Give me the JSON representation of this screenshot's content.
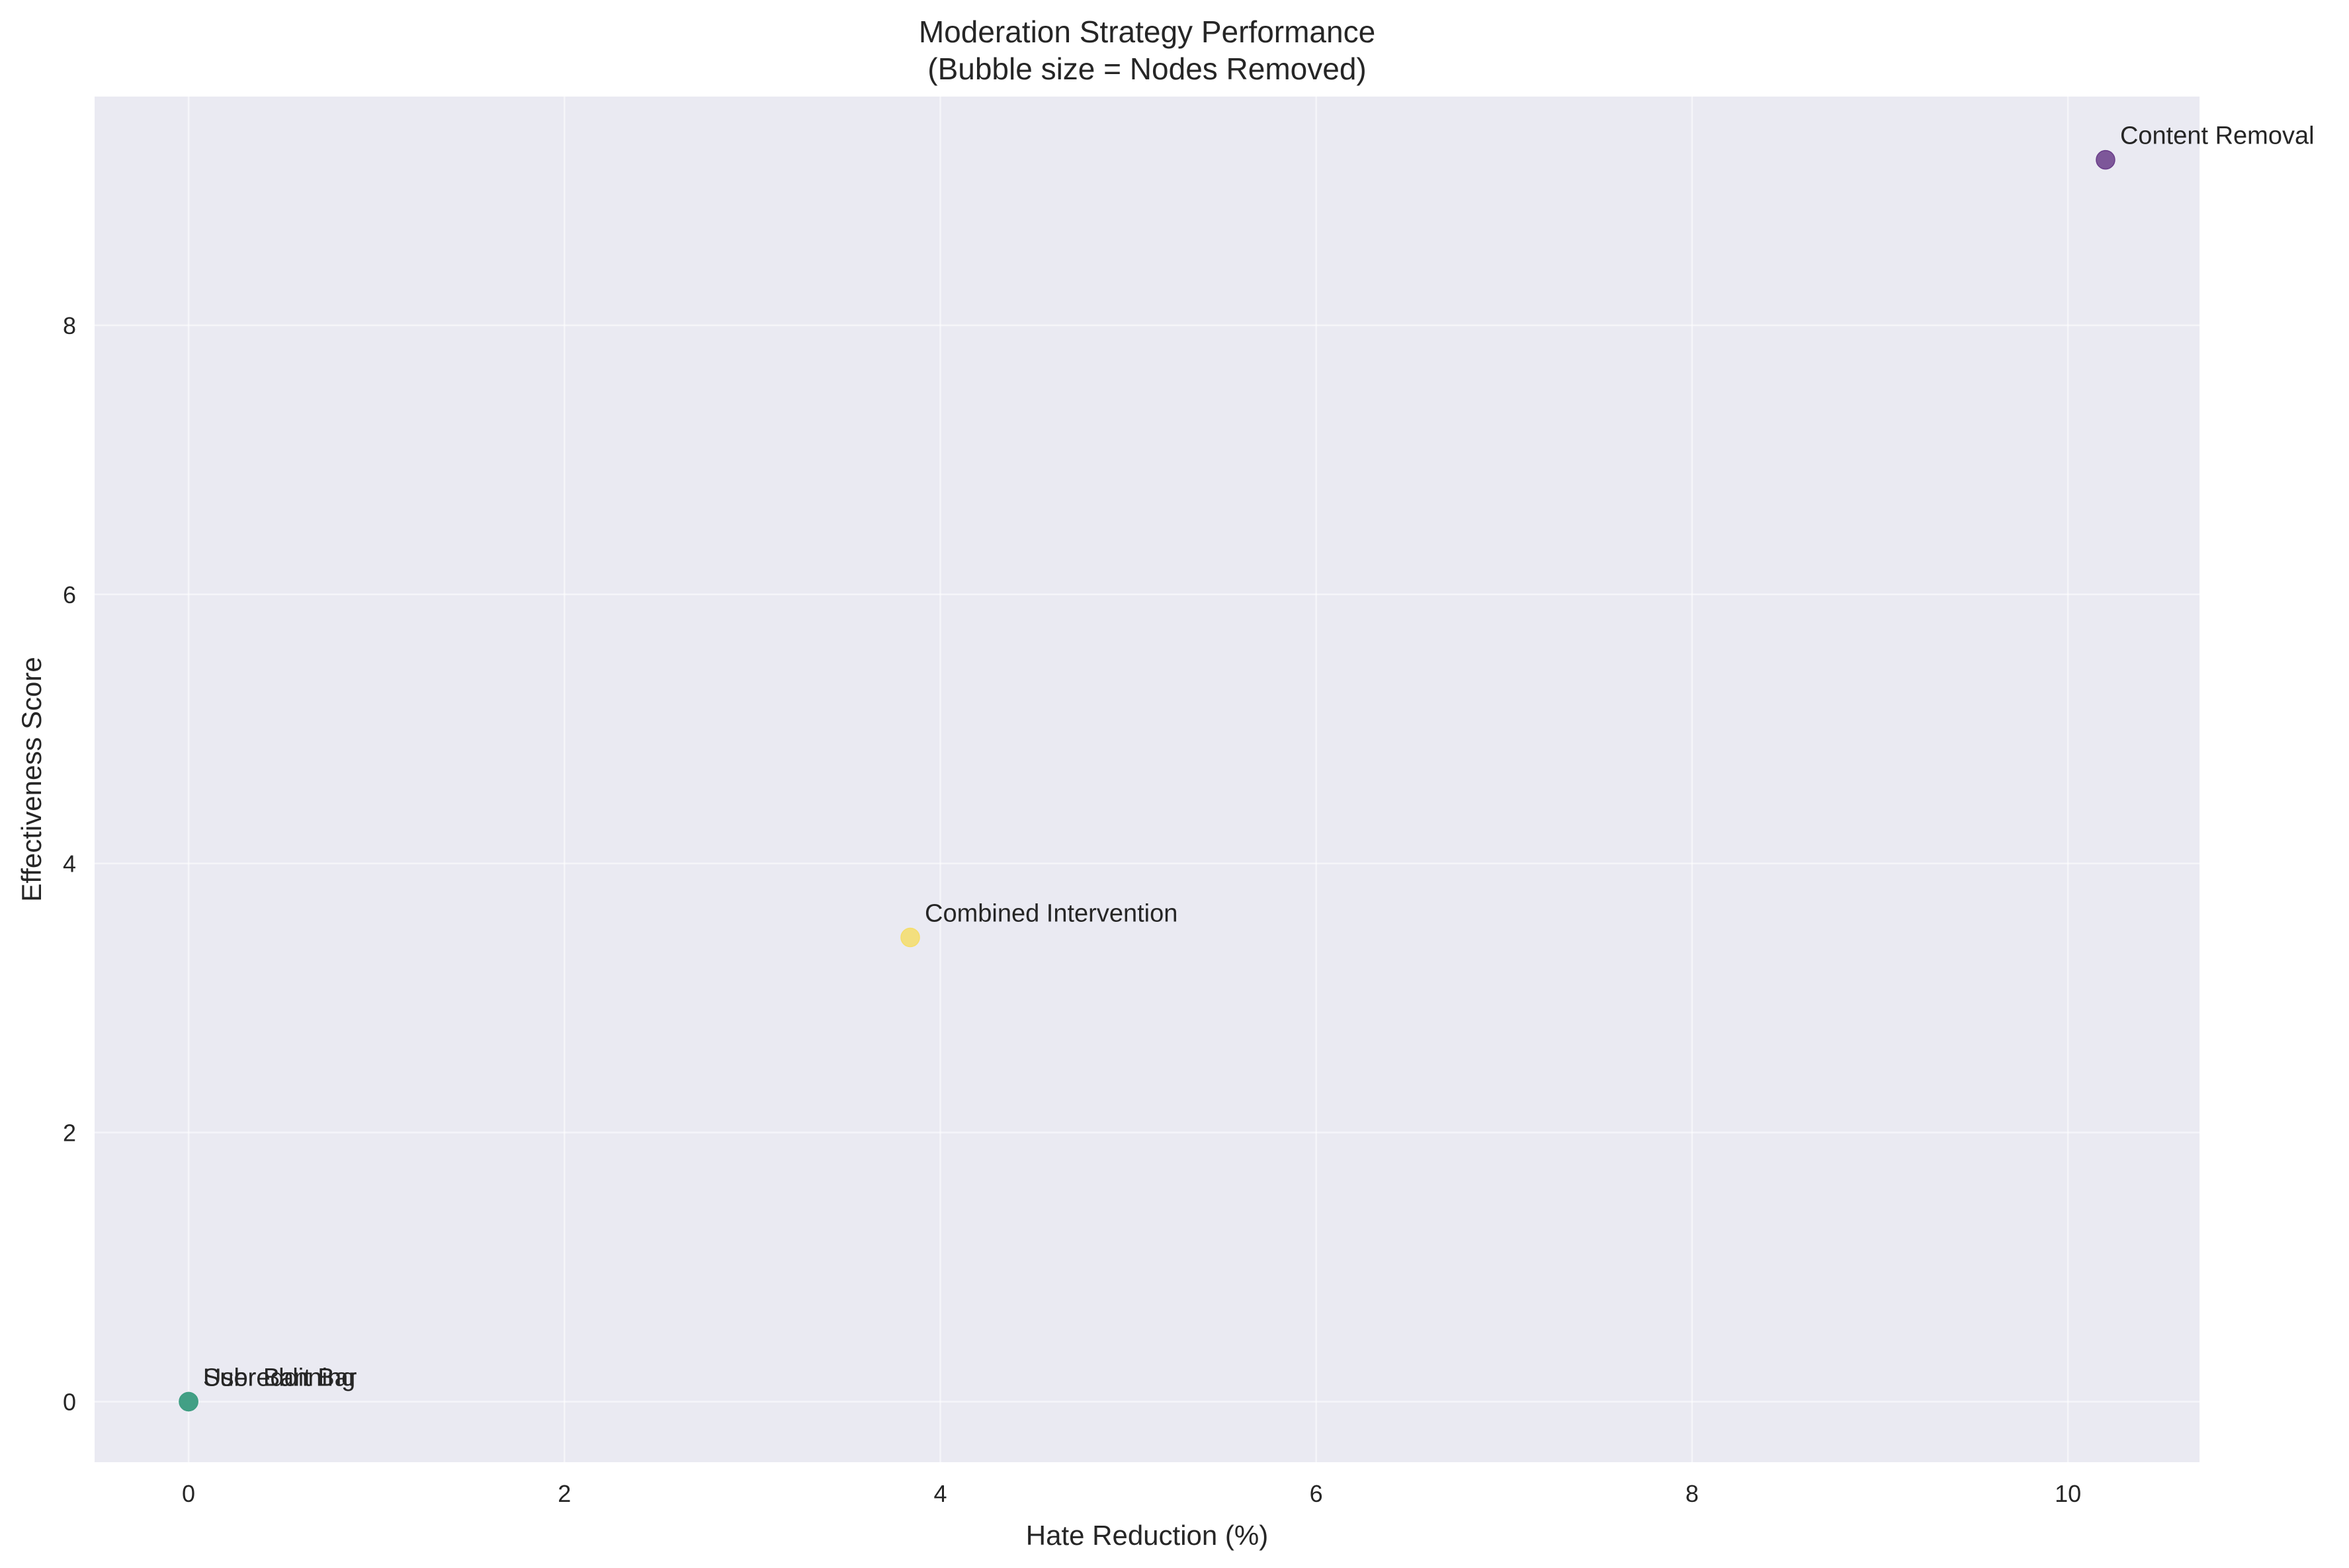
{
  "chart_data": {
    "type": "scatter",
    "title": "Moderation Strategy Performance\n(Bubble size = Nodes Removed)",
    "xlabel": "Hate Reduction (%)",
    "ylabel": "Effectiveness Score",
    "xlim": [
      -0.5,
      10.7
    ],
    "ylim": [
      -0.45,
      9.7
    ],
    "xticks": [
      0,
      2,
      4,
      6,
      8,
      10
    ],
    "yticks": [
      0,
      2,
      4,
      6,
      8
    ],
    "grid": true,
    "legend": "none",
    "colors": {
      "background": "#eaeaf2",
      "grid": "#ffffff"
    },
    "points": [
      {
        "label": "Content Removal",
        "x": 10.2,
        "y": 9.23,
        "color": "#6a3d8a"
      },
      {
        "label": "Combined Intervention",
        "x": 3.84,
        "y": 3.45,
        "color": "#f5dd6a"
      },
      {
        "label": "User Banning",
        "x": 0.0,
        "y": 0.0,
        "color": "#3e9e82"
      },
      {
        "label": "Subreddit Bar",
        "x": 0.0,
        "y": 0.0,
        "color": "#3e9e82"
      }
    ]
  }
}
